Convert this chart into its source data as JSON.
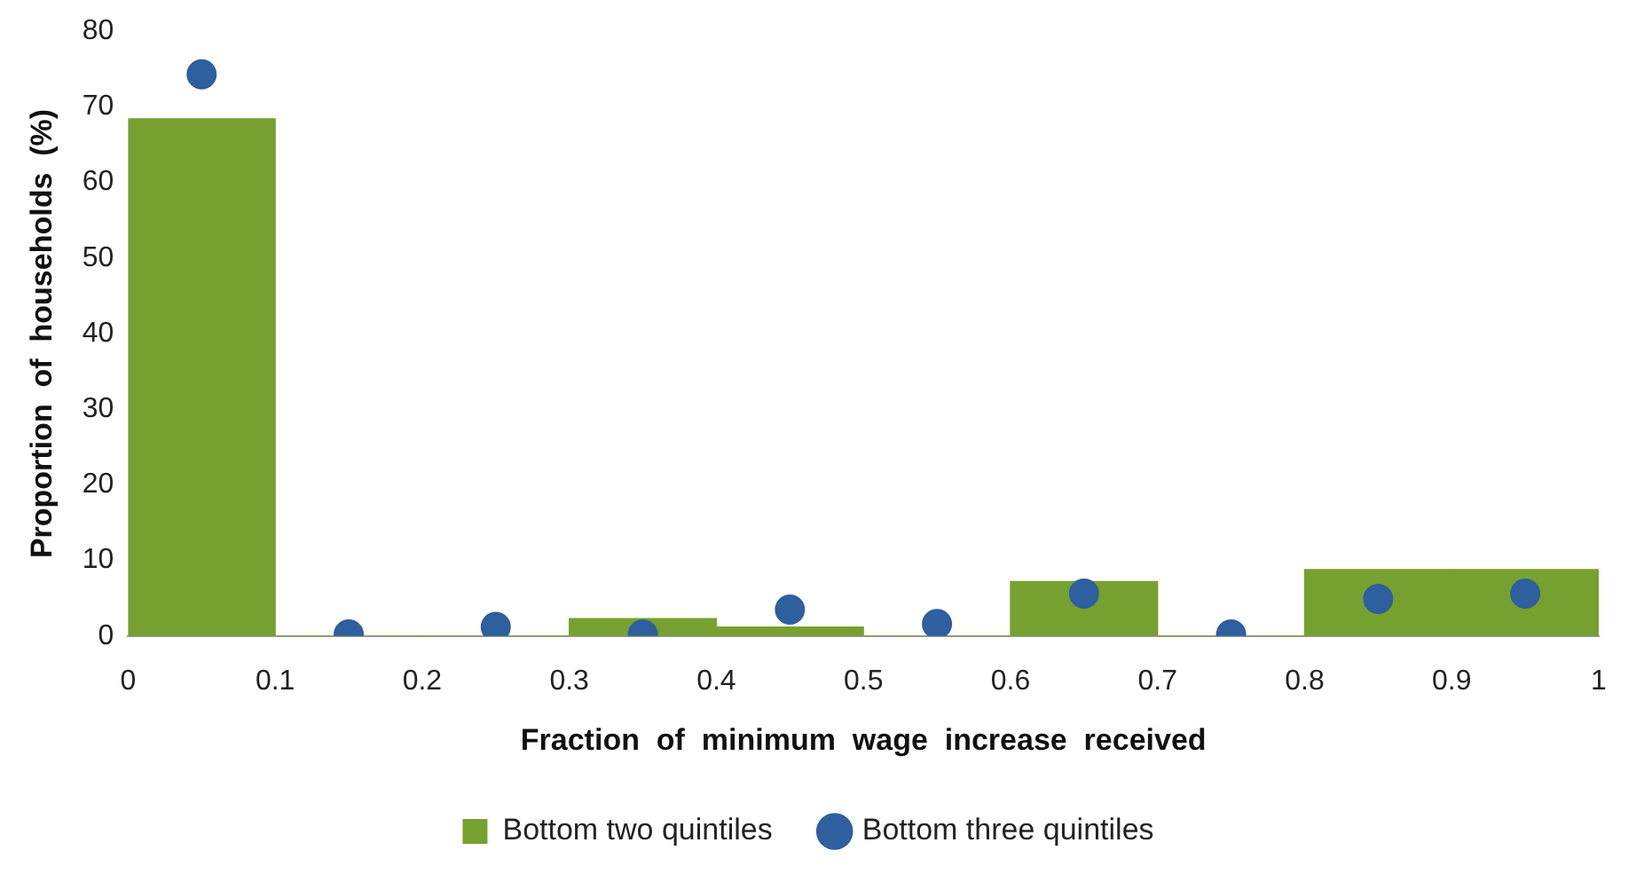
{
  "chart_data": {
    "type": "histogram",
    "xlabel": "Fraction  of  minimum  wage  increase  received",
    "ylabel": "Proportion  of  households  (%)",
    "bins": [
      0,
      0.1,
      0.2,
      0.3,
      0.4,
      0.5,
      0.6,
      0.7,
      0.8,
      0.9,
      1
    ],
    "series": [
      {
        "name": "Bottom two quintiles",
        "color": "#76a130",
        "values": [
          68.4,
          0,
          0,
          2.3,
          1.2,
          0,
          7.2,
          0,
          8.8,
          8.8
        ]
      },
      {
        "name": "Bottom three quintiles",
        "type": "scatter",
        "color": "#2e5f9e",
        "x": [
          0.05,
          0.15,
          0.25,
          0.35,
          0.45,
          0.55,
          0.65,
          0.75,
          0.85,
          0.95
        ],
        "values": [
          74.3,
          0.2,
          1.2,
          0.2,
          3.5,
          1.6,
          5.6,
          0.2,
          4.9,
          5.6
        ]
      }
    ],
    "xlim": [
      0,
      1
    ],
    "xticks": [
      0,
      0.1,
      0.2,
      0.3,
      0.4,
      0.5,
      0.6,
      0.7,
      0.8,
      0.9,
      1
    ],
    "ylim": [
      0,
      80
    ],
    "yticks": [
      0,
      10,
      20,
      30,
      40,
      50,
      60,
      70,
      80
    ],
    "grid": false,
    "legend": "bottom",
    "marker": "circle"
  }
}
